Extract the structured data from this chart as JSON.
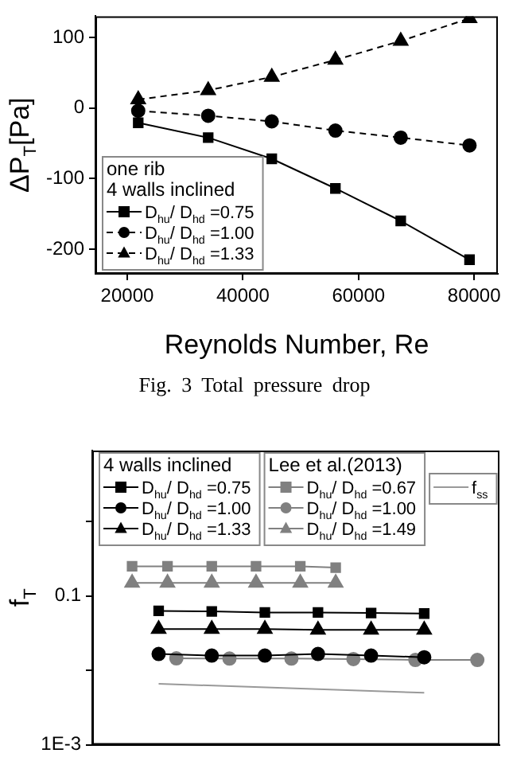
{
  "chart_data": [
    {
      "type": "line",
      "ylabel": "ΔP$_{T}$[Pa]",
      "xlabel": "Reynolds Number, Re",
      "legend": "bottom left",
      "legend_title": "one rib\n4 walls inclined",
      "annotations": [
        "Fig. 3 Total pressure drop"
      ],
      "grid": false,
      "x": [
        21900,
        34000,
        45000,
        56000,
        67300,
        79200
      ],
      "xlim": [
        14500,
        84100
      ],
      "xticks": [
        20000,
        40000,
        60000,
        80000
      ],
      "ylim": [
        -235,
        130
      ],
      "yticks": [
        -200,
        -100,
        0,
        100
      ],
      "series": [
        {
          "name": "D$_{hu}$/ D$_{hd}$ =0.75",
          "color": "#000000",
          "marker": "square",
          "line_style": "solid",
          "values": [
            -21,
            -42,
            -72,
            -114,
            -160,
            -215
          ]
        },
        {
          "name": "D$_{hu}$/ D$_{hd}$ =1.00",
          "color": "#000000",
          "marker": "circle",
          "line_style": "dashed",
          "values": [
            -4,
            -11,
            -19,
            -32,
            -42,
            -53
          ]
        },
        {
          "name": "D$_{hu}$/ D$_{hd}$ =1.33",
          "color": "#000000",
          "marker": "triangle",
          "line_style": "dashed",
          "values": [
            12,
            25,
            44,
            68,
            95,
            127
          ]
        }
      ]
    },
    {
      "type": "line",
      "ylabel": "f$_{T}$",
      "legend": "top left",
      "legend_title": "4 walls inclined",
      "annotations": [
        "Lee et al.(2013)"
      ],
      "grid": false,
      "log": "y",
      "tick_labels": "y",
      "categories": [
        null,
        null,
        null,
        null,
        null,
        null,
        null,
        null,
        null,
        null,
        null,
        null,
        null,
        null,
        null,
        null,
        null,
        null,
        null,
        null,
        null,
        null,
        null,
        null,
        null,
        null,
        null,
        null,
        null,
        null,
        null,
        null,
        null,
        null,
        null,
        null,
        null,
        null,
        null,
        null,
        null,
        null,
        null,
        null,
        null,
        null
      ],
      "ylim": [
        0.001,
        9
      ],
      "yticks": [
        {
          "value": 1,
          "label": null
        },
        0.1,
        {
          "value": 0.01,
          "label": null
        },
        {
          "value": 0.001,
          "label": "1E-3"
        }
      ],
      "series": [
        {
          "name": "D$_{hu}$/ D$_{hd}$ =0.75",
          "color": "#000000",
          "marker": "square",
          "values": [
            null,
            null,
            null,
            null,
            null,
            null,
            null,
            0.063,
            null,
            null,
            null,
            null,
            null,
            0.062,
            null,
            null,
            null,
            null,
            null,
            0.06,
            null,
            null,
            null,
            null,
            null,
            0.06,
            null,
            null,
            null,
            null,
            null,
            0.059,
            null,
            null,
            null,
            null,
            null,
            0.058,
            null,
            null,
            null,
            null,
            null,
            null,
            null,
            null
          ]
        },
        {
          "name": "D$_{hu}$/ D$_{hd}$ =1.00",
          "color": "#000000",
          "marker": "circle",
          "values": [
            null,
            null,
            null,
            null,
            null,
            null,
            null,
            0.0166,
            null,
            null,
            null,
            null,
            null,
            0.0158,
            null,
            null,
            null,
            null,
            null,
            0.0158,
            null,
            null,
            null,
            null,
            null,
            0.0166,
            null,
            null,
            null,
            null,
            null,
            0.0158,
            null,
            null,
            null,
            null,
            null,
            0.015,
            null,
            null,
            null,
            null,
            null,
            null,
            null,
            null
          ]
        },
        {
          "name": "D$_{hu}$/ D$_{hd}$ =1.33",
          "color": "#000000",
          "marker": "triangle",
          "values": [
            null,
            null,
            null,
            null,
            null,
            null,
            null,
            0.036,
            null,
            null,
            null,
            null,
            null,
            0.036,
            null,
            null,
            null,
            null,
            null,
            0.036,
            null,
            null,
            null,
            null,
            null,
            0.035,
            null,
            null,
            null,
            null,
            null,
            0.035,
            null,
            null,
            null,
            null,
            null,
            0.035,
            null,
            null,
            null,
            null,
            null,
            null,
            null,
            null
          ]
        },
        {
          "name": "D$_{hu}$/ D$_{hd}$ =0.67",
          "color": "#808080",
          "marker": "square",
          "values": [
            null,
            null,
            null,
            null,
            0.25,
            null,
            null,
            null,
            0.25,
            null,
            null,
            null,
            null,
            0.25,
            null,
            null,
            null,
            null,
            0.25,
            null,
            null,
            null,
            null,
            0.25,
            null,
            null,
            null,
            0.24,
            null,
            null,
            null,
            null,
            null,
            null,
            null,
            null,
            null,
            null,
            null,
            null,
            null,
            null,
            null,
            null,
            null,
            null
          ]
        },
        {
          "name": "D$_{hu}$/ D$_{hd}$ =1.00",
          "color": "#808080",
          "marker": "circle",
          "values": [
            null,
            null,
            null,
            null,
            null,
            null,
            null,
            null,
            null,
            0.0145,
            null,
            null,
            null,
            null,
            null,
            0.0144,
            null,
            null,
            null,
            null,
            null,
            null,
            0.0144,
            null,
            null,
            null,
            null,
            null,
            null,
            0.0142,
            null,
            null,
            null,
            null,
            null,
            null,
            0.0138,
            null,
            null,
            null,
            null,
            null,
            null,
            0.0138,
            null,
            null
          ]
        },
        {
          "name": "D$_{hu}$/ D$_{hd}$ =1.49",
          "color": "#808080",
          "marker": "triangle",
          "values": [
            null,
            null,
            null,
            null,
            0.15,
            null,
            null,
            null,
            0.15,
            null,
            null,
            null,
            null,
            0.15,
            null,
            null,
            null,
            null,
            0.15,
            null,
            null,
            null,
            null,
            0.15,
            null,
            null,
            null,
            0.15,
            null,
            null,
            null,
            null,
            null,
            null,
            null,
            null,
            null,
            null,
            null,
            null,
            null,
            null,
            null,
            null,
            null,
            null
          ]
        },
        {
          "name": "f$_{ss}$",
          "color": "#999999",
          "marker": "none",
          "values": [
            null,
            null,
            null,
            null,
            null,
            null,
            null,
            0.0066,
            null,
            null,
            null,
            null,
            null,
            null,
            null,
            null,
            null,
            null,
            null,
            null,
            null,
            null,
            null,
            null,
            null,
            null,
            null,
            null,
            null,
            null,
            null,
            null,
            null,
            null,
            null,
            null,
            null,
            0.005,
            null,
            null,
            null,
            null,
            null,
            null,
            null,
            null
          ]
        }
      ]
    }
  ]
}
